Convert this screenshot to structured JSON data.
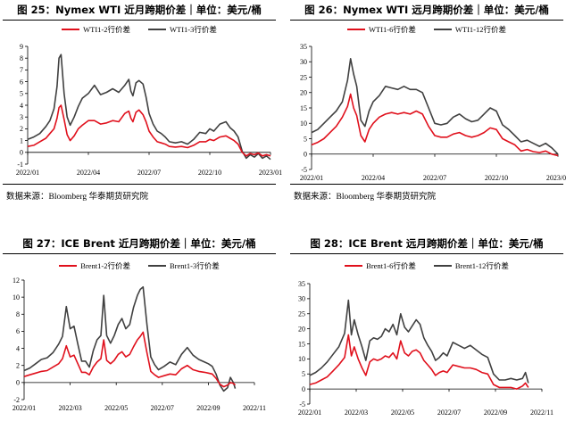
{
  "colors": {
    "near": "#e0101c",
    "far": "#404040"
  },
  "source_text": "数据来源：Bloomberg 华泰期货研究院",
  "chart_data": [
    {
      "type": "line",
      "title": "图 25：Nymex WTI 近月跨期价差｜单位：美元/桶",
      "xticks": [
        "2022/01",
        "2022/04",
        "2022/07",
        "2022/10",
        "2023/01"
      ],
      "yticks": [
        "-1",
        "0",
        "1",
        "2",
        "3",
        "4",
        "5",
        "6",
        "7",
        "8",
        "9"
      ],
      "ylim": [
        -1,
        9
      ],
      "xlim": [
        0,
        12
      ],
      "series": [
        {
          "name": "WTI1-2行价差",
          "color": "#e0101c",
          "x": [
            0,
            0.3,
            0.6,
            0.9,
            1.1,
            1.3,
            1.45,
            1.55,
            1.65,
            1.8,
            1.95,
            2.1,
            2.3,
            2.5,
            2.7,
            3.0,
            3.3,
            3.6,
            3.9,
            4.2,
            4.5,
            4.8,
            5.0,
            5.1,
            5.2,
            5.35,
            5.5,
            5.7,
            5.85,
            6.0,
            6.2,
            6.4,
            6.6,
            6.8,
            7.0,
            7.3,
            7.6,
            7.9,
            8.2,
            8.5,
            8.8,
            9.0,
            9.2,
            9.5,
            9.8,
            10.0,
            10.2,
            10.4,
            10.6,
            10.8,
            11.0,
            11.2,
            11.4,
            11.6,
            11.8,
            12.0
          ],
          "y": [
            0.5,
            0.6,
            0.9,
            1.2,
            1.6,
            2.0,
            2.9,
            3.8,
            4.0,
            2.8,
            1.5,
            1.0,
            1.4,
            2.0,
            2.3,
            2.7,
            2.7,
            2.4,
            2.5,
            2.7,
            2.6,
            3.3,
            3.5,
            2.9,
            2.6,
            3.4,
            3.6,
            3.2,
            2.6,
            1.8,
            1.3,
            0.9,
            0.8,
            0.7,
            0.5,
            0.45,
            0.5,
            0.4,
            0.6,
            0.9,
            0.9,
            1.1,
            1.0,
            1.3,
            1.4,
            1.2,
            1.0,
            0.7,
            0.0,
            -0.3,
            -0.1,
            -0.2,
            -0.05,
            -0.3,
            -0.2,
            -0.3
          ]
        },
        {
          "name": "WTI1-3行价差",
          "color": "#404040",
          "x": [
            0,
            0.3,
            0.6,
            0.9,
            1.1,
            1.3,
            1.45,
            1.55,
            1.65,
            1.8,
            1.95,
            2.1,
            2.3,
            2.5,
            2.7,
            3.0,
            3.3,
            3.6,
            3.9,
            4.2,
            4.5,
            4.8,
            5.0,
            5.1,
            5.2,
            5.35,
            5.5,
            5.7,
            5.85,
            6.0,
            6.2,
            6.4,
            6.6,
            6.8,
            7.0,
            7.3,
            7.6,
            7.9,
            8.2,
            8.5,
            8.8,
            9.0,
            9.2,
            9.5,
            9.8,
            10.0,
            10.2,
            10.4,
            10.6,
            10.8,
            11.0,
            11.2,
            11.4,
            11.6,
            11.8,
            12.0
          ],
          "y": [
            1.1,
            1.3,
            1.6,
            2.2,
            2.7,
            3.7,
            5.6,
            8.0,
            8.3,
            5.0,
            3.0,
            2.3,
            3.0,
            3.9,
            4.6,
            5.0,
            5.7,
            4.9,
            5.1,
            5.4,
            5.1,
            5.7,
            6.2,
            5.2,
            4.8,
            5.9,
            6.1,
            5.8,
            4.7,
            3.3,
            2.4,
            1.8,
            1.6,
            1.3,
            0.9,
            0.8,
            0.9,
            0.7,
            1.1,
            1.7,
            1.6,
            2.0,
            1.8,
            2.4,
            2.6,
            2.1,
            1.8,
            1.3,
            0.1,
            -0.5,
            -0.2,
            -0.4,
            -0.1,
            -0.5,
            -0.3,
            -0.6
          ]
        }
      ]
    },
    {
      "type": "line",
      "title": "图 26：Nymex WTI 远月跨期价差｜单位：美元/桶",
      "xticks": [
        "2022/01",
        "2022/04",
        "2022/07",
        "2022/10",
        "2023/01"
      ],
      "yticks": [
        "-5",
        "0",
        "5",
        "10",
        "15",
        "20",
        "25",
        "30",
        "35"
      ],
      "ylim": [
        -5,
        35
      ],
      "xlim": [
        0,
        12
      ],
      "series": [
        {
          "name": "WTI1-6行价差",
          "color": "#e0101c",
          "x": [
            0,
            0.3,
            0.6,
            0.9,
            1.2,
            1.5,
            1.75,
            1.9,
            2.05,
            2.2,
            2.4,
            2.6,
            2.8,
            3.0,
            3.3,
            3.6,
            3.9,
            4.2,
            4.5,
            4.8,
            5.1,
            5.4,
            5.7,
            6.0,
            6.3,
            6.6,
            6.9,
            7.2,
            7.5,
            7.8,
            8.1,
            8.4,
            8.7,
            9.0,
            9.3,
            9.6,
            9.9,
            10.2,
            10.5,
            10.8,
            11.1,
            11.4,
            11.7,
            12.0
          ],
          "y": [
            3.0,
            3.8,
            5.0,
            7.0,
            9.0,
            12.0,
            15.5,
            19.5,
            15.0,
            12.5,
            6.0,
            4.0,
            8.0,
            10.0,
            12.0,
            13.0,
            13.5,
            13.0,
            13.5,
            13.0,
            14.0,
            13.0,
            9.0,
            6.0,
            5.5,
            5.5,
            6.5,
            7.0,
            6.0,
            5.5,
            6.0,
            7.0,
            8.5,
            8.0,
            5.0,
            4.0,
            3.0,
            1.0,
            1.5,
            0.8,
            0.5,
            1.0,
            0.0,
            -0.5
          ]
        },
        {
          "name": "WTI1-12行价差",
          "color": "#404040",
          "x": [
            0,
            0.3,
            0.6,
            0.9,
            1.2,
            1.5,
            1.75,
            1.9,
            2.05,
            2.2,
            2.4,
            2.6,
            2.8,
            3.0,
            3.3,
            3.6,
            3.9,
            4.2,
            4.5,
            4.8,
            5.1,
            5.4,
            5.7,
            6.0,
            6.3,
            6.6,
            6.9,
            7.2,
            7.5,
            7.8,
            8.1,
            8.4,
            8.7,
            9.0,
            9.3,
            9.6,
            9.9,
            10.2,
            10.5,
            10.8,
            11.1,
            11.4,
            11.7,
            12.0
          ],
          "y": [
            7.0,
            8.0,
            10.0,
            12.0,
            14.0,
            17.0,
            24.0,
            31.0,
            26.0,
            22.0,
            11.0,
            9.0,
            14.0,
            17.0,
            19.0,
            22.0,
            21.5,
            21.0,
            22.0,
            21.0,
            21.0,
            20.0,
            15.0,
            10.0,
            9.5,
            10.0,
            12.0,
            13.0,
            11.5,
            10.5,
            11.0,
            13.0,
            15.0,
            14.0,
            9.5,
            8.0,
            6.0,
            4.0,
            4.5,
            3.5,
            2.5,
            3.5,
            2.0,
            0.0
          ]
        }
      ]
    },
    {
      "type": "line",
      "title": "图 27：ICE Brent 近月跨期价差｜单位：美元/桶",
      "xticks": [
        "2022/01",
        "2022/03",
        "2022/05",
        "2022/07",
        "2022/09",
        "2022/11"
      ],
      "yticks": [
        "-2",
        "0",
        "2",
        "4",
        "6",
        "8",
        "10",
        "12"
      ],
      "ylim": [
        -2,
        12
      ],
      "xlim": [
        0,
        12
      ],
      "series": [
        {
          "name": "Brent1-2行价差",
          "color": "#e0101c",
          "x": [
            0,
            0.3,
            0.6,
            0.9,
            1.2,
            1.5,
            1.8,
            2.0,
            2.2,
            2.4,
            2.6,
            2.8,
            3.0,
            3.2,
            3.4,
            3.6,
            3.8,
            4.0,
            4.15,
            4.3,
            4.5,
            4.7,
            4.9,
            5.1,
            5.3,
            5.5,
            5.7,
            5.9,
            6.05,
            6.2,
            6.4,
            6.6,
            6.8,
            7.0,
            7.3,
            7.6,
            7.9,
            8.2,
            8.5,
            8.8,
            9.1,
            9.4,
            9.6,
            9.8,
            10.0,
            10.2,
            10.4,
            10.6,
            10.75,
            10.9,
            11.0
          ],
          "y": [
            0.7,
            0.9,
            1.1,
            1.3,
            1.4,
            1.8,
            2.2,
            2.8,
            4.3,
            3.0,
            3.2,
            2.2,
            1.2,
            1.2,
            0.9,
            1.8,
            2.4,
            2.8,
            5.0,
            2.6,
            2.2,
            2.6,
            3.3,
            3.6,
            3.0,
            3.3,
            4.2,
            5.0,
            5.4,
            5.9,
            3.5,
            1.3,
            0.9,
            0.6,
            0.8,
            1.0,
            0.9,
            1.6,
            2.0,
            1.5,
            1.3,
            1.2,
            1.1,
            1.0,
            0.5,
            -0.2,
            -0.5,
            -0.3,
            0.0,
            -0.1,
            -0.3
          ]
        },
        {
          "name": "Brent1-3行价差",
          "color": "#404040",
          "x": [
            0,
            0.3,
            0.6,
            0.9,
            1.2,
            1.5,
            1.8,
            2.0,
            2.2,
            2.4,
            2.6,
            2.8,
            3.0,
            3.2,
            3.4,
            3.6,
            3.8,
            4.0,
            4.15,
            4.3,
            4.5,
            4.7,
            4.9,
            5.1,
            5.3,
            5.5,
            5.7,
            5.9,
            6.05,
            6.2,
            6.4,
            6.6,
            6.8,
            7.0,
            7.3,
            7.6,
            7.9,
            8.2,
            8.5,
            8.8,
            9.1,
            9.4,
            9.6,
            9.8,
            10.0,
            10.2,
            10.4,
            10.6,
            10.75,
            10.9,
            11.0
          ],
          "y": [
            1.4,
            1.7,
            2.2,
            2.7,
            2.9,
            3.5,
            4.5,
            5.4,
            8.9,
            6.3,
            6.6,
            4.5,
            2.5,
            2.5,
            1.8,
            3.7,
            5.0,
            5.5,
            10.2,
            5.5,
            4.6,
            5.5,
            6.8,
            7.5,
            6.3,
            6.8,
            8.8,
            10.2,
            10.9,
            11.2,
            6.8,
            3.0,
            2.1,
            1.5,
            1.9,
            2.4,
            2.1,
            3.3,
            4.1,
            3.2,
            2.7,
            2.4,
            2.2,
            1.9,
            1.0,
            -0.3,
            -1.0,
            -0.6,
            0.6,
            0.0,
            -0.7
          ]
        }
      ]
    },
    {
      "type": "line",
      "title": "图 28：ICE Brent 远月跨期价差｜单位：美元/桶",
      "xticks": [
        "2022/01",
        "2022/03",
        "2022/05",
        "2022/07",
        "2022/09",
        "2022/11"
      ],
      "yticks": [
        "-5",
        "0",
        "5",
        "10",
        "15",
        "20",
        "25",
        "30",
        "35"
      ],
      "ylim": [
        -5,
        35
      ],
      "xlim": [
        0,
        12
      ],
      "series": [
        {
          "name": "Brent1-6行价差",
          "color": "#e0101c",
          "x": [
            0,
            0.3,
            0.6,
            0.9,
            1.2,
            1.5,
            1.8,
            2.0,
            2.15,
            2.3,
            2.5,
            2.7,
            2.9,
            3.1,
            3.3,
            3.5,
            3.7,
            3.9,
            4.1,
            4.3,
            4.5,
            4.7,
            4.9,
            5.1,
            5.3,
            5.5,
            5.7,
            5.9,
            6.1,
            6.3,
            6.5,
            6.7,
            6.9,
            7.1,
            7.4,
            7.7,
            8.0,
            8.3,
            8.6,
            8.9,
            9.2,
            9.5,
            9.8,
            10.1,
            10.4,
            10.7,
            11.0,
            11.15,
            11.3
          ],
          "y": [
            1.5,
            2.0,
            3.0,
            4.0,
            6.0,
            8.0,
            10.5,
            18.0,
            11.0,
            14.0,
            10.0,
            7.0,
            4.5,
            9.0,
            10.0,
            9.5,
            10.0,
            11.0,
            10.5,
            12.0,
            10.0,
            16.0,
            12.0,
            11.0,
            12.5,
            13.0,
            12.0,
            9.5,
            8.0,
            6.5,
            4.5,
            5.5,
            6.0,
            5.5,
            8.0,
            7.5,
            7.0,
            7.0,
            6.5,
            5.5,
            5.0,
            1.5,
            0.5,
            0.5,
            0.5,
            0.0,
            1.0,
            2.0,
            0.5
          ]
        },
        {
          "name": "Brent1-12行价差",
          "color": "#404040",
          "x": [
            0,
            0.3,
            0.6,
            0.9,
            1.2,
            1.5,
            1.8,
            2.0,
            2.15,
            2.3,
            2.5,
            2.7,
            2.9,
            3.1,
            3.3,
            3.5,
            3.7,
            3.9,
            4.1,
            4.3,
            4.5,
            4.7,
            4.9,
            5.1,
            5.3,
            5.5,
            5.7,
            5.9,
            6.1,
            6.3,
            6.5,
            6.7,
            6.9,
            7.1,
            7.4,
            7.7,
            8.0,
            8.3,
            8.6,
            8.9,
            9.2,
            9.5,
            9.8,
            10.1,
            10.4,
            10.7,
            11.0,
            11.15,
            11.3
          ],
          "y": [
            4.5,
            5.5,
            7.0,
            9.0,
            11.5,
            14.0,
            18.5,
            29.5,
            18.0,
            23.0,
            18.0,
            14.0,
            9.5,
            16.0,
            17.0,
            16.5,
            17.5,
            20.0,
            19.0,
            21.5,
            18.0,
            25.0,
            20.5,
            19.0,
            21.0,
            23.0,
            21.5,
            17.0,
            14.5,
            12.5,
            9.5,
            10.5,
            12.0,
            11.0,
            15.5,
            14.5,
            13.5,
            14.5,
            13.0,
            11.5,
            10.5,
            5.0,
            3.0,
            3.0,
            3.5,
            3.0,
            3.5,
            5.5,
            2.0
          ]
        }
      ]
    }
  ]
}
